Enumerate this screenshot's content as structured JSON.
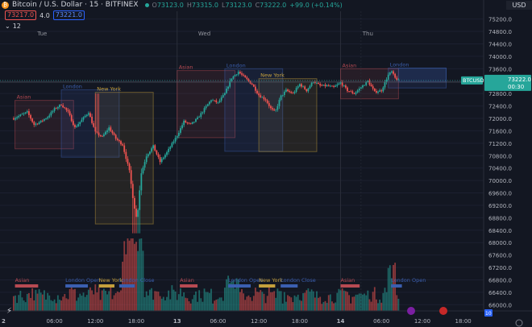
{
  "header": {
    "symbol_title": "Bitcoin / U.S. Dollar · 15 · BITFINEX",
    "ohlc": [
      {
        "label": "O",
        "value": "73123.0"
      },
      {
        "label": "H",
        "value": "73315.0"
      },
      {
        "label": "L",
        "value": "73123.0"
      },
      {
        "label": "C",
        "value": "73222.0"
      }
    ],
    "change": "+99.0 (+0.14%)",
    "sell_price": "73217.0",
    "spread": "4.0",
    "buy_price": "73221.0",
    "indicator_count": "12",
    "currency": "USD"
  },
  "colors": {
    "up": "#26a69a",
    "down": "#ef5350",
    "asian": "#b74a52",
    "london": "#3b5fb0",
    "newyork": "#c5a03c"
  },
  "price_tag": {
    "symbol": "BTCUSD",
    "price": "73222.0",
    "countdown": "00:30"
  },
  "chart_data": {
    "type": "candlestick",
    "y_ticks": [
      75200,
      74800,
      74400,
      74000,
      73600,
      73200,
      72800,
      72400,
      72000,
      71600,
      71200,
      70800,
      70400,
      70000,
      69600,
      69200,
      68800,
      68400,
      68000,
      67600,
      67200,
      66800,
      66400,
      66000
    ],
    "y_tick_labels": [
      "75200.0",
      "74800.0",
      "74400.0",
      "74000.0",
      "73600.0",
      "73200.0",
      "72800.0",
      "72400.0",
      "72000.0",
      "71600.0",
      "71200.0",
      "70800.0",
      "70400.0",
      "70000.0",
      "69600.0",
      "69200.0",
      "68800.0",
      "68400.0",
      "68000.0",
      "67600.0",
      "67200.0",
      "66800.0",
      "66400.0",
      "66000.0"
    ],
    "ylim": [
      65800,
      75450
    ],
    "x_ticks": [
      "2",
      "06:00",
      "12:00",
      "18:00",
      "13",
      "06:00",
      "12:00",
      "18:00",
      "14",
      "06:00",
      "12:00",
      "18:00"
    ],
    "day_labels": [
      "Tue",
      "Wed",
      "Thu"
    ],
    "last_price": 73222,
    "sessions": [
      {
        "name": "Asian",
        "kind": "asian",
        "start": 0.2,
        "end": 8.8,
        "high": 72580,
        "low": 71020
      },
      {
        "name": "London",
        "kind": "london",
        "start": 7.0,
        "end": 15.5,
        "high": 72920,
        "low": 70750
      },
      {
        "name": "New York",
        "kind": "newyork",
        "start": 12.0,
        "end": 20.5,
        "high": 72840,
        "low": 68600
      },
      {
        "name": "Asian",
        "kind": "asian",
        "start": 24.0,
        "end": 32.5,
        "high": 73540,
        "low": 71380
      },
      {
        "name": "London",
        "kind": "london",
        "start": 31.0,
        "end": 39.5,
        "high": 73600,
        "low": 70940
      },
      {
        "name": "New York",
        "kind": "newyork",
        "start": 36.0,
        "end": 44.5,
        "high": 73280,
        "low": 70930
      },
      {
        "name": "Asian",
        "kind": "asian",
        "start": 48.0,
        "end": 56.5,
        "high": 73600,
        "low": 72630
      },
      {
        "name": "London",
        "kind": "london",
        "start": 55.0,
        "end": 63.5,
        "high": 73620,
        "low": 72980
      }
    ],
    "bottom_sessions": [
      {
        "label": "Asian",
        "kind": "asian",
        "start": 0.2,
        "end": 3.6
      },
      {
        "label": "London Open",
        "kind": "london",
        "start": 7.6,
        "end": 10.9
      },
      {
        "label": "New York",
        "kind": "newyork",
        "start": 12.5,
        "end": 14.8
      },
      {
        "label": "London Close",
        "kind": "london",
        "start": 15.5,
        "end": 17.8
      },
      {
        "label": "Asian",
        "kind": "asian",
        "start": 24.4,
        "end": 27.0
      },
      {
        "label": "London Open",
        "kind": "london",
        "start": 31.5,
        "end": 34.8
      },
      {
        "label": "New York",
        "kind": "newyork",
        "start": 36.0,
        "end": 38.4
      },
      {
        "label": "London Close",
        "kind": "london",
        "start": 39.2,
        "end": 41.7
      },
      {
        "label": "Asian",
        "kind": "asian",
        "start": 48.0,
        "end": 50.8
      },
      {
        "label": "London Open",
        "kind": "london",
        "start": 55.4,
        "end": 57.0
      }
    ],
    "time_hours": [
      4,
      6,
      12,
      18,
      24,
      30,
      36,
      42,
      48,
      54,
      60,
      66
    ],
    "anchors": [
      [
        0,
        72000
      ],
      [
        1,
        72100
      ],
      [
        2,
        72200
      ],
      [
        3,
        71800
      ],
      [
        4,
        71900
      ],
      [
        5,
        72050
      ],
      [
        6,
        72300
      ],
      [
        7,
        72450
      ],
      [
        8,
        72200
      ],
      [
        9,
        71700
      ],
      [
        10,
        71950
      ],
      [
        11,
        72200
      ],
      [
        12,
        71550
      ],
      [
        13,
        71400
      ],
      [
        14,
        71700
      ],
      [
        15,
        71350
      ],
      [
        16,
        71150
      ],
      [
        17,
        70300
      ],
      [
        17.6,
        69300
      ],
      [
        18.1,
        68700
      ],
      [
        18.7,
        70200
      ],
      [
        19.5,
        70800
      ],
      [
        20.5,
        71100
      ],
      [
        21.5,
        70600
      ],
      [
        22.5,
        70900
      ],
      [
        24,
        71450
      ],
      [
        25,
        71900
      ],
      [
        26,
        71800
      ],
      [
        27,
        72000
      ],
      [
        28,
        72300
      ],
      [
        29,
        72600
      ],
      [
        30,
        72500
      ],
      [
        31,
        72800
      ],
      [
        32,
        73300
      ],
      [
        33,
        73500
      ],
      [
        34,
        73300
      ],
      [
        35,
        73100
      ],
      [
        36,
        72750
      ],
      [
        37,
        72600
      ],
      [
        37.8,
        72300
      ],
      [
        38.4,
        72200
      ],
      [
        39.2,
        72700
      ],
      [
        40,
        72900
      ],
      [
        41,
        72800
      ],
      [
        42,
        73100
      ],
      [
        43,
        72900
      ],
      [
        44,
        73200
      ],
      [
        45,
        73050
      ],
      [
        46,
        73050
      ],
      [
        47,
        73000
      ],
      [
        48,
        73150
      ],
      [
        49,
        72900
      ],
      [
        50,
        72800
      ],
      [
        51,
        73000
      ],
      [
        52,
        73200
      ],
      [
        53,
        72850
      ],
      [
        54,
        72900
      ],
      [
        55,
        73400
      ],
      [
        55.5,
        73500
      ],
      [
        56,
        73300
      ],
      [
        56.5,
        73222
      ]
    ],
    "crosshair_price": 73170
  }
}
